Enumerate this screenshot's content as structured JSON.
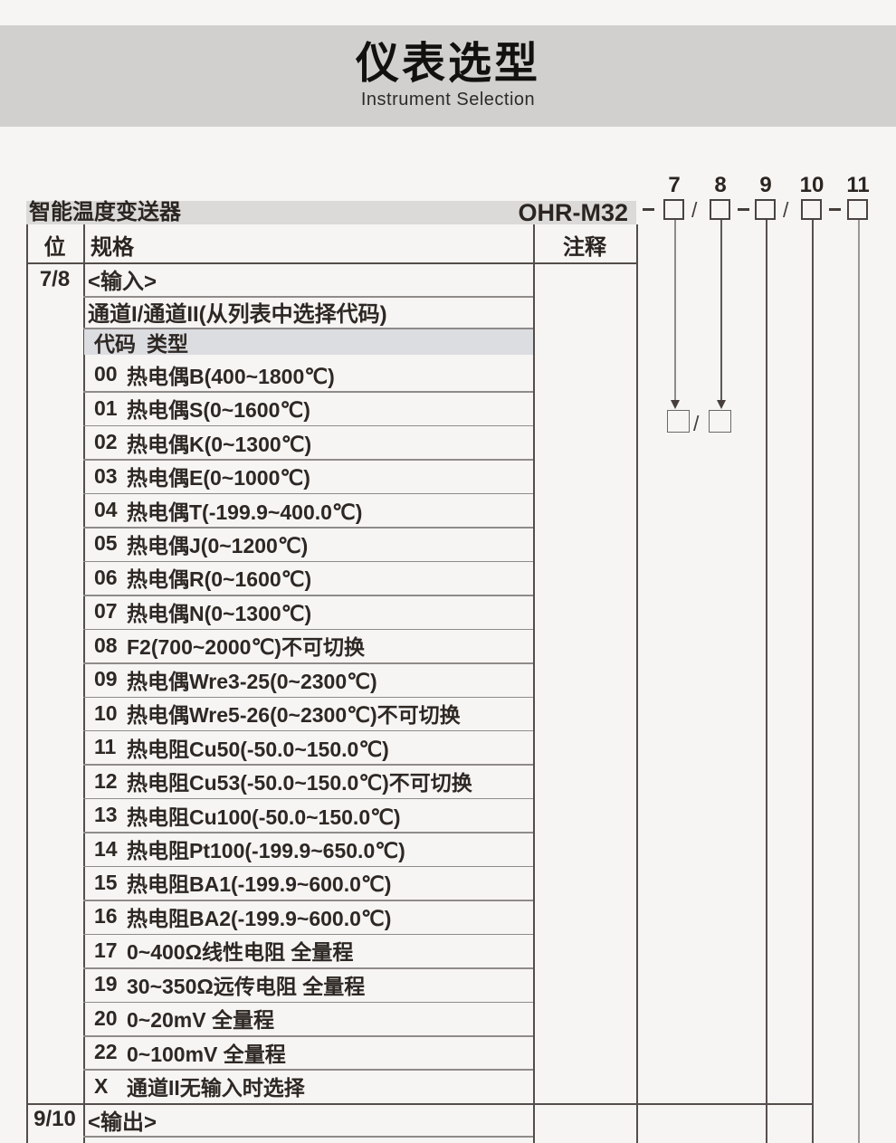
{
  "header": {
    "title": "仪表选型",
    "subtitle": "Instrument Selection"
  },
  "product": {
    "name": "智能温度变送器",
    "model": "OHR-M32"
  },
  "model_code_diagram": {
    "digit_labels": [
      "7",
      "8",
      "9",
      "10",
      "11"
    ],
    "separators": [
      "-",
      "/",
      "-",
      "/",
      "-"
    ],
    "channel_pair_separator": "/"
  },
  "table": {
    "columns": {
      "pos": "位",
      "spec": "规格",
      "note": "注释"
    },
    "rows": [
      {
        "kind": "spec",
        "pos": "7/8",
        "text": "<输入>"
      },
      {
        "kind": "spec",
        "pos": "",
        "text": "通道I/通道II(从列表中选择代码)"
      },
      {
        "kind": "band",
        "code_header": "代码",
        "type_header": "类型"
      },
      {
        "kind": "code",
        "code": "00",
        "label": "热电偶B(400~1800℃)"
      },
      {
        "kind": "code",
        "code": "01",
        "label": "热电偶S(0~1600℃)"
      },
      {
        "kind": "code",
        "code": "02",
        "label": "热电偶K(0~1300℃)"
      },
      {
        "kind": "code",
        "code": "03",
        "label": "热电偶E(0~1000℃)"
      },
      {
        "kind": "code",
        "code": "04",
        "label": "热电偶T(-199.9~400.0℃)"
      },
      {
        "kind": "code",
        "code": "05",
        "label": "热电偶J(0~1200℃)"
      },
      {
        "kind": "code",
        "code": "06",
        "label": "热电偶R(0~1600℃)"
      },
      {
        "kind": "code",
        "code": "07",
        "label": "热电偶N(0~1300℃)"
      },
      {
        "kind": "code",
        "code": "08",
        "label": "F2(700~2000℃)不可切换"
      },
      {
        "kind": "code",
        "code": "09",
        "label": "热电偶Wre3-25(0~2300℃)"
      },
      {
        "kind": "code",
        "code": "10",
        "label": "热电偶Wre5-26(0~2300℃)不可切换"
      },
      {
        "kind": "code",
        "code": "11",
        "label": "热电阻Cu50(-50.0~150.0℃)"
      },
      {
        "kind": "code",
        "code": "12",
        "label": "热电阻Cu53(-50.0~150.0℃)不可切换"
      },
      {
        "kind": "code",
        "code": "13",
        "label": "热电阻Cu100(-50.0~150.0℃)"
      },
      {
        "kind": "code",
        "code": "14",
        "label": "热电阻Pt100(-199.9~650.0℃)"
      },
      {
        "kind": "code",
        "code": "15",
        "label": "热电阻BA1(-199.9~600.0℃)"
      },
      {
        "kind": "code",
        "code": "16",
        "label": "热电阻BA2(-199.9~600.0℃)"
      },
      {
        "kind": "code",
        "code": "17",
        "label": "0~400Ω线性电阻 全量程"
      },
      {
        "kind": "code",
        "code": "19",
        "label": "30~350Ω远传电阻 全量程"
      },
      {
        "kind": "code",
        "code": "20",
        "label": "0~20mV 全量程"
      },
      {
        "kind": "code",
        "code": "22",
        "label": "0~100mV 全量程"
      },
      {
        "kind": "code",
        "code": "X",
        "label": "通道II无输入时选择"
      },
      {
        "kind": "spec",
        "pos": "9/10",
        "text": "<输出>"
      }
    ]
  },
  "colors": {
    "page_bg": "#f6f5f4",
    "header_band": "#d1d0cf",
    "product_bar": "#dbdad9",
    "code_band": "#dcdde1",
    "line_dark": "#544d4a",
    "line_light": "#8f8b89",
    "text": "#2e2824"
  }
}
